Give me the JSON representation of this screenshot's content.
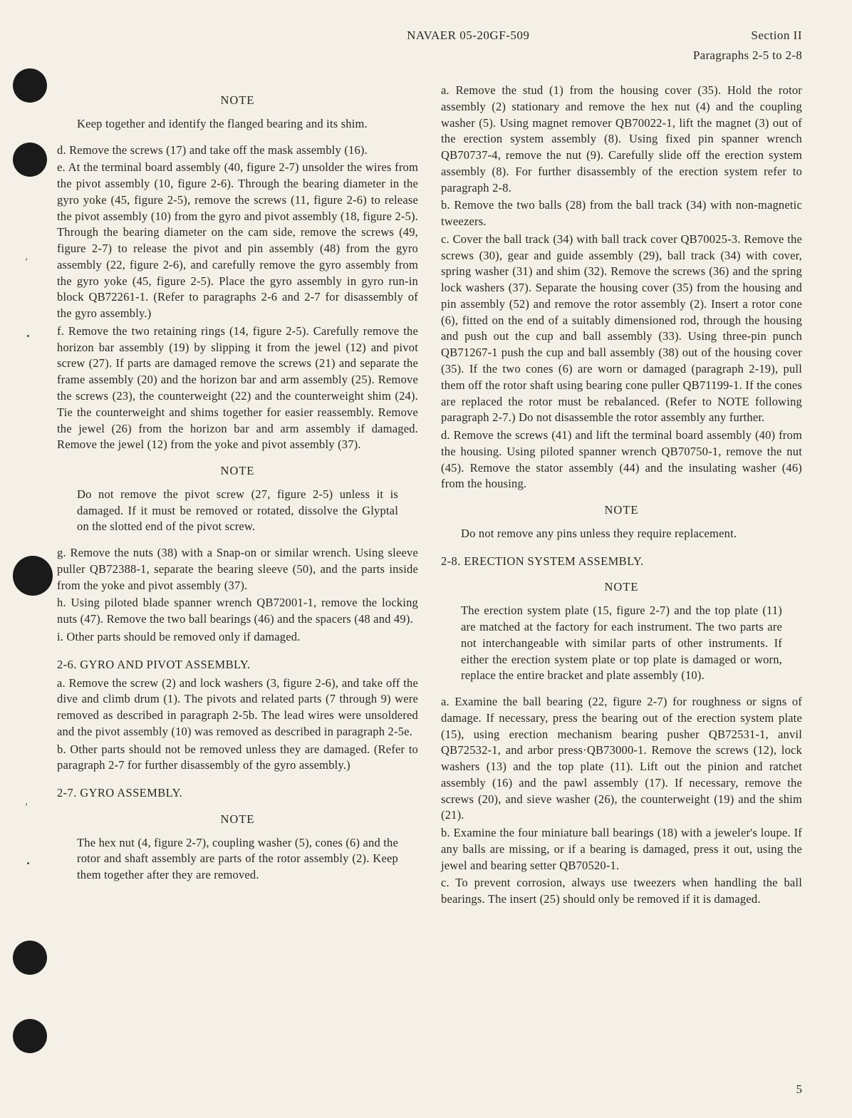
{
  "header": {
    "docnum": "NAVAER 05-20GF-509",
    "section": "Section II",
    "paragraphs": "Paragraphs 2-5 to 2-8"
  },
  "col1": {
    "note1_heading": "NOTE",
    "note1_body": "Keep together and identify the flanged bearing and its shim.",
    "para_d": "d. Remove the screws (17) and take off the mask assembly (16).",
    "para_e": "e. At the terminal board assembly (40, figure 2-7) unsolder the wires from the pivot assembly (10, figure 2-6). Through the bearing diameter in the gyro yoke (45, figure 2-5), remove the screws (11, figure 2-6) to release the pivot assembly (10) from the gyro and pivot assembly (18, figure 2-5). Through the bearing diameter on the cam side, remove the screws (49, figure 2-7) to release the pivot and pin assembly (48) from the gyro assembly (22, figure 2-6), and carefully remove the gyro assembly from the gyro yoke (45, figure 2-5).  Place the gyro assembly in gyro run-in block QB72261-1. (Refer to paragraphs 2-6 and 2-7 for disassembly of the gyro assembly.)",
    "para_f": "f. Remove the two retaining rings (14, figure 2-5). Carefully remove the horizon bar assembly (19) by slipping it from the jewel (12) and pivot screw (27). If parts are damaged remove the screws (21) and separate the frame assembly (20) and the horizon bar and arm assembly (25). Remove the screws (23), the counterweight (22) and the counterweight shim (24). Tie the counterweight and shims together for easier reassembly. Remove the jewel (26) from the horizon bar and arm assembly if damaged. Remove the jewel (12) from the yoke and pivot assembly (37).",
    "note2_heading": "NOTE",
    "note2_body": "Do not remove the pivot screw (27, figure 2-5) unless it is damaged. If it must be removed or rotated, dissolve the Glyptal on the slotted end of the pivot screw.",
    "para_g": "g. Remove the nuts (38) with a Snap-on or similar wrench. Using sleeve puller QB72388-1, separate the bearing sleeve (50), and the parts inside from the yoke and pivot assembly (37).",
    "para_h": "h. Using piloted blade spanner wrench QB72001-1, remove the locking nuts (47). Remove the two ball bearings (46) and the spacers (48 and 49).",
    "para_i": "i. Other parts should be removed only if damaged.",
    "sec26_heading": "2-6. GYRO AND PIVOT ASSEMBLY.",
    "sec26_a": "a. Remove the screw (2) and lock washers (3, figure 2-6), and take off the dive and climb drum (1). The pivots and related parts (7 through 9) were removed as described in paragraph 2-5b. The lead wires were unsoldered and the pivot assembly (10) was removed as described in paragraph 2-5e.",
    "sec26_b": "b. Other parts should not be removed unless they are damaged. (Refer to paragraph 2-7 for further disassembly of the gyro assembly.)",
    "sec27_heading": "2-7. GYRO ASSEMBLY.",
    "note3_heading": "NOTE",
    "note3_body": "The hex nut (4, figure 2-7), coupling washer (5), cones (6) and the rotor and shaft assembly are parts of the rotor assembly (2). Keep them together after they are removed."
  },
  "col2": {
    "para_a": "a. Remove the stud (1) from the housing cover (35). Hold the rotor assembly (2) stationary and remove the hex nut (4) and the coupling washer (5). Using magnet remover QB70022-1, lift the magnet (3) out of the erection system assembly (8). Using fixed pin spanner wrench QB70737-4, remove the nut (9). Carefully slide off the erection system assembly (8). For further disassembly of the erection system refer to paragraph 2-8.",
    "para_b": "b. Remove the two balls (28) from the ball track (34) with non-magnetic tweezers.",
    "para_c": "c. Cover the ball track (34) with ball track cover QB70025-3. Remove the screws (30), gear and guide assembly (29), ball track (34) with cover, spring washer (31) and shim (32). Remove the screws (36) and the spring lock washers (37). Separate the housing cover (35) from the housing and pin assembly (52) and remove the rotor assembly (2). Insert a rotor cone (6), fitted on the end of a suitably dimensioned rod, through the housing and push out the cup and ball assembly (33). Using three-pin punch QB71267-1 push the cup and ball assembly (38) out of the housing cover (35). If the two cones (6) are worn or damaged (paragraph 2-19), pull them off the rotor shaft using bearing cone puller QB71199-1. If the cones are replaced the rotor must be rebalanced. (Refer to NOTE following paragraph 2-7.) Do not disassemble the rotor assembly any further.",
    "para_d": "d. Remove the screws (41) and lift the terminal board assembly (40) from the housing. Using piloted spanner wrench QB70750-1, remove the nut (45). Remove the stator assembly (44) and the insulating washer (46) from the housing.",
    "note4_heading": "NOTE",
    "note4_body": "Do not remove any pins unless they require replacement.",
    "sec28_heading": "2-8. ERECTION SYSTEM ASSEMBLY.",
    "note5_heading": "NOTE",
    "note5_body": "The erection system plate (15, figure 2-7) and the top plate (11) are matched at the factory for each instrument. The two parts are not interchangeable with similar parts of other instruments. If either the erection system plate or top plate is damaged or worn, replace the entire bracket and plate assembly (10).",
    "sec28_a": "a. Examine the ball bearing (22, figure 2-7) for roughness or signs of damage. If necessary, press the bearing out of the erection system plate (15), using erection mechanism bearing pusher QB72531-1, anvil QB72532-1, and arbor press·QB73000-1. Remove the screws (12), lock washers (13) and the top plate (11). Lift out the pinion and ratchet assembly (16) and the pawl assembly (17). If necessary, remove the screws (20), and sieve washer (26), the counterweight (19) and the shim (21).",
    "sec28_b": "b. Examine the four miniature ball bearings (18) with a jeweler's loupe. If any balls are missing, or if a bearing is damaged, press it out, using the jewel and bearing setter QB70520-1.",
    "sec28_c": "c. To prevent corrosion, always use tweezers when handling the ball bearings. The insert (25) should only be removed if it is damaged."
  },
  "page_number": "5"
}
